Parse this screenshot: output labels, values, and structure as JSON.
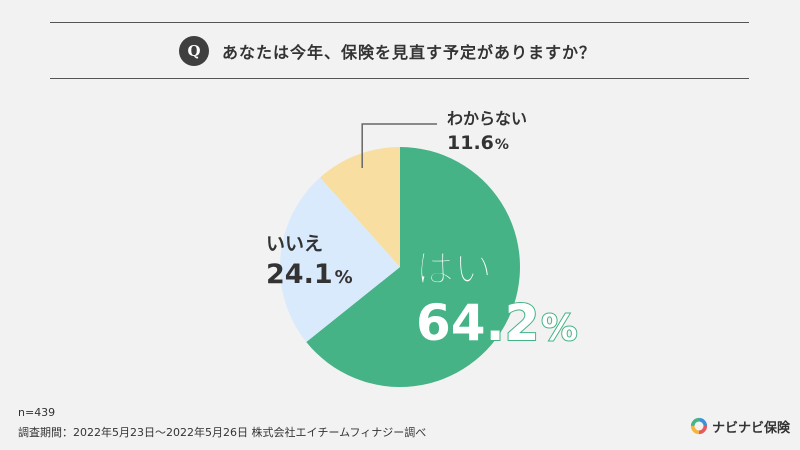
{
  "question": {
    "badge": "Q",
    "text": "あなたは今年、保険を見直す予定がありますか？"
  },
  "chart_data": {
    "type": "pie",
    "title": "あなたは今年、保険を見直す予定がありますか？",
    "start": "12 o'clock, clockwise",
    "slices": [
      {
        "label": "はい",
        "value": 64.2,
        "value_text": "64.2",
        "unit": "%",
        "color": "#45b386"
      },
      {
        "label": "いいえ",
        "value": 24.1,
        "value_text": "24.1",
        "unit": "%",
        "color": "#d9eafc"
      },
      {
        "label": "わからない",
        "value": 11.6,
        "value_text": "11.6",
        "unit": "%",
        "color": "#f8dfa1"
      }
    ]
  },
  "footer": {
    "n": "n=439",
    "source": "調査期間：2022年5月23日〜2022年5月26日 株式会社エイチームフィナジー調べ"
  },
  "logo": {
    "text": "ナビナビ保険",
    "colors": [
      "#e85a5a",
      "#f5b43c",
      "#45b386",
      "#3c8fd9"
    ]
  }
}
